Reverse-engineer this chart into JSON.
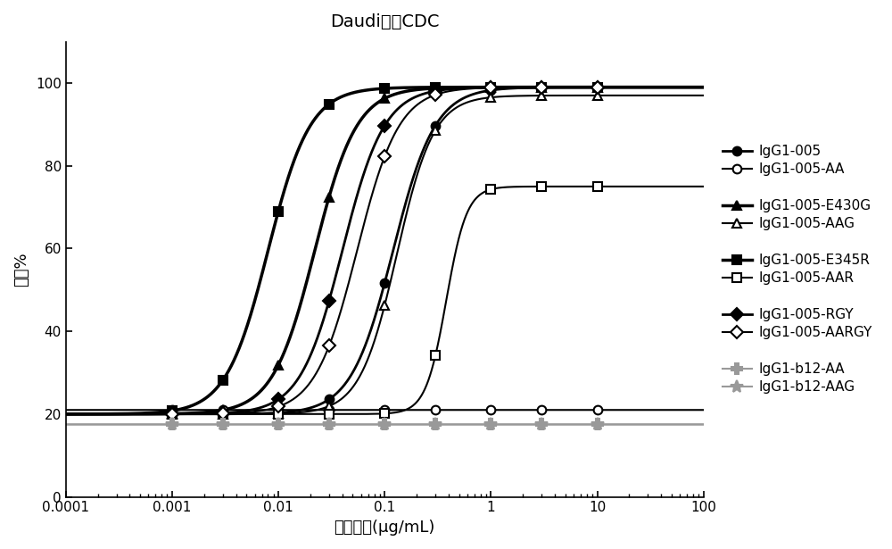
{
  "title": "Daudi上的CDC",
  "xlabel": "抗体浓度(μg/mL)",
  "ylabel": "裂解%",
  "xmin": 0.0001,
  "xmax": 100,
  "ymin": 0,
  "ymax": 110,
  "yticks": [
    0,
    20,
    40,
    60,
    80,
    100
  ],
  "xticks": [
    0.0001,
    0.001,
    0.01,
    0.1,
    1,
    10,
    100
  ],
  "xticklabels": [
    "0.0001",
    "0.001",
    "0.01",
    "0.1",
    "1",
    "10",
    "100"
  ],
  "series": [
    {
      "label": "IgG1-005",
      "color": "#000000",
      "marker": "o",
      "marker_fill": "black",
      "linewidth": 2.0,
      "EC50": 0.12,
      "bottom": 20,
      "top": 99,
      "hill": 2.2
    },
    {
      "label": "IgG1-005-AA",
      "color": "#000000",
      "marker": "o",
      "marker_fill": "white",
      "linewidth": 1.5,
      "EC50": 9999,
      "bottom": 21,
      "top": 21,
      "hill": 1.0
    },
    {
      "label": "IgG1-005-E430G",
      "color": "#000000",
      "marker": "^",
      "marker_fill": "black",
      "linewidth": 2.5,
      "EC50": 0.022,
      "bottom": 20,
      "top": 99,
      "hill": 2.2
    },
    {
      "label": "IgG1-005-AAG",
      "color": "#000000",
      "marker": "^",
      "marker_fill": "white",
      "linewidth": 1.5,
      "EC50": 0.13,
      "bottom": 20,
      "top": 97,
      "hill": 2.5
    },
    {
      "label": "IgG1-005-E345R",
      "color": "#000000",
      "marker": "s",
      "marker_fill": "black",
      "linewidth": 2.5,
      "EC50": 0.008,
      "bottom": 20,
      "top": 99,
      "hill": 2.2
    },
    {
      "label": "IgG1-005-AAR",
      "color": "#000000",
      "marker": "s",
      "marker_fill": "white",
      "linewidth": 1.5,
      "EC50": 0.38,
      "bottom": 20,
      "top": 75,
      "hill": 4.5
    },
    {
      "label": "IgG1-005-RGY",
      "color": "#000000",
      "marker": "D",
      "marker_fill": "black",
      "linewidth": 2.0,
      "EC50": 0.04,
      "bottom": 20,
      "top": 99,
      "hill": 2.2
    },
    {
      "label": "IgG1-005-AARGY",
      "color": "#000000",
      "marker": "D",
      "marker_fill": "white",
      "linewidth": 1.5,
      "EC50": 0.055,
      "bottom": 20,
      "top": 99,
      "hill": 2.2
    },
    {
      "label": "IgG1-b12-AA",
      "color": "#999999",
      "marker": "P",
      "marker_fill": "gray",
      "linewidth": 1.5,
      "EC50": 9999,
      "bottom": 17.5,
      "top": 17.5,
      "hill": 1.0
    },
    {
      "label": "IgG1-b12-AAG",
      "color": "#999999",
      "marker": "*",
      "marker_fill": "gray",
      "linewidth": 1.5,
      "EC50": 9999,
      "bottom": 17.5,
      "top": 17.5,
      "hill": 1.0
    }
  ],
  "x_data_points": [
    0.001,
    0.003,
    0.01,
    0.03,
    0.1,
    0.3,
    1.0,
    3.0,
    10.0
  ]
}
